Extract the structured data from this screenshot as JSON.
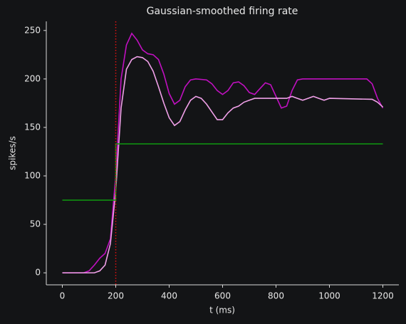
{
  "chart_data": {
    "type": "line",
    "title": "Gaussian-smoothed firing rate",
    "x_label": "t (ms)",
    "y_label": "spikes/s",
    "xlim": [
      -60,
      1260
    ],
    "xticks": [
      0,
      200,
      400,
      600,
      800,
      1000,
      1200
    ],
    "ylim": [
      -12.4,
      259.4
    ],
    "yticks": [
      0,
      50,
      100,
      150,
      200,
      250
    ],
    "vline": {
      "x": 200,
      "color": "#e01010"
    },
    "series": [
      {
        "color": "#c010c0",
        "x": [
          0,
          80,
          100,
          120,
          140,
          160,
          180,
          200,
          220,
          240,
          260,
          280,
          300,
          320,
          340,
          360,
          380,
          400,
          420,
          440,
          460,
          480,
          500,
          540,
          560,
          580,
          600,
          620,
          640,
          660,
          680,
          700,
          720,
          740,
          760,
          780,
          800,
          820,
          840,
          860,
          880,
          900,
          1140,
          1160,
          1180,
          1200
        ],
        "values": [
          0,
          0,
          2,
          8,
          15,
          20,
          35,
          100,
          200,
          235,
          247,
          240,
          230,
          226,
          225,
          220,
          205,
          185,
          174,
          178,
          192,
          199,
          200,
          199,
          195,
          188,
          184,
          188,
          196,
          197,
          193,
          186,
          184,
          190,
          196,
          194,
          182,
          170,
          172,
          188,
          199,
          200,
          200,
          195,
          180,
          170
        ]
      },
      {
        "color": "#f0a0e8",
        "x": [
          0,
          120,
          140,
          160,
          180,
          200,
          220,
          240,
          260,
          280,
          300,
          320,
          340,
          360,
          380,
          400,
          420,
          440,
          460,
          480,
          500,
          520,
          540,
          560,
          580,
          600,
          620,
          640,
          660,
          680,
          700,
          720,
          800,
          840,
          860,
          880,
          900,
          920,
          940,
          960,
          980,
          1000,
          1160,
          1180,
          1200
        ],
        "values": [
          0,
          0,
          2,
          8,
          30,
          85,
          170,
          210,
          220,
          223,
          222,
          218,
          208,
          192,
          175,
          160,
          152,
          156,
          168,
          178,
          182,
          180,
          174,
          166,
          158,
          158,
          165,
          170,
          172,
          176,
          178,
          180,
          180,
          180,
          182,
          180,
          178,
          180,
          182,
          180,
          178,
          180,
          179,
          176,
          171
        ]
      },
      {
        "color": "#109010",
        "x": [
          0,
          200,
          200,
          1200
        ],
        "values": [
          75,
          75,
          133,
          133
        ]
      }
    ]
  }
}
